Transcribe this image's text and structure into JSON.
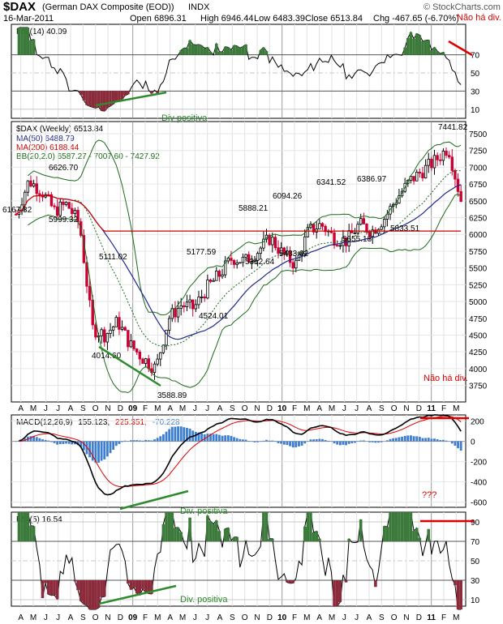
{
  "header": {
    "symbol": "$DAX",
    "name": "(German DAX Composite (EOD))",
    "exchange": "INDX",
    "date": "16-Mar-2011",
    "copyright": "© StockCharts.com",
    "open": "Open 6896.31",
    "high": "High 6946.44",
    "low": "Low 6483.39",
    "close": "Close 6513.84",
    "chg": "Chg -467.65 (-6.70%)"
  },
  "colors": {
    "price_up": "#000000",
    "price_down": "#cc0033",
    "ma50": "#1f2a8a",
    "ma200": "#cc0000",
    "bollinger": "#1a6b1a",
    "macd": "#000000",
    "signal": "#dd0000",
    "histogram": "#3d7ecf",
    "rsi_fill_high": "#3b7a3b",
    "rsi_fill_low": "#8a2a3a",
    "annotation_green": "#2e8b2e",
    "annotation_red": "#dd0000",
    "annotation_text_green": "#2a8a2a"
  },
  "rsi14_panel": {
    "legend": "RSI(14) 40.09",
    "ticks": [
      "70",
      "50",
      "30",
      "10"
    ],
    "annotation_note": "Não há div.",
    "annotation_div": "Div positiva"
  },
  "price_panel": {
    "legend_main": "$DAX (Weekly) 6513.84",
    "legend_ma50": "MA(50) 6488.79",
    "legend_ma200": "MA(200) 6188.44",
    "legend_bb": "BB(20,2.0) 6587.27 - 7007.60 - 7427.92",
    "ticks": [
      "7500",
      "7250",
      "7000",
      "6750",
      "6500",
      "6250",
      "6000",
      "5750",
      "5500",
      "5250",
      "5000",
      "4750",
      "4500",
      "4250",
      "4000",
      "3750"
    ],
    "labels": [
      "7441.82",
      "6626.70",
      "6167.82",
      "5999.32",
      "6341.52",
      "6386.97",
      "6094.26",
      "5888.21",
      "5655.18",
      "5833.51",
      "5177.59",
      "5111.02",
      "5312.64",
      "5433.02",
      "4524.01",
      "4014.60",
      "3588.89"
    ],
    "annotation_note": "Não há div."
  },
  "macd_panel": {
    "legend_prefix": "MACD(12,26,9)",
    "legend_macd": "155.123,",
    "legend_signal": "225.351,",
    "legend_hist": "-70.228",
    "ticks": [
      "200",
      "0",
      "-200",
      "-400",
      "-600"
    ],
    "annotation_q": "???",
    "annotation_div": "Div. positiva"
  },
  "rsi5_panel": {
    "legend": "RSI(5) 16.54",
    "ticks": [
      "90",
      "70",
      "50",
      "30",
      "10"
    ],
    "annotation_div": "Div. positiva"
  },
  "x_axis": {
    "months": [
      "A",
      "M",
      "J",
      "J",
      "A",
      "S",
      "O",
      "N",
      "D",
      "09",
      "F",
      "M",
      "A",
      "M",
      "J",
      "J",
      "A",
      "S",
      "O",
      "N",
      "D",
      "10",
      "F",
      "M",
      "A",
      "M",
      "J",
      "J",
      "A",
      "S",
      "O",
      "N",
      "D",
      "11",
      "F",
      "M"
    ]
  },
  "chart_data": {
    "type": "candlestick",
    "title": "$DAX (German DAX Composite (EOD)) INDX",
    "period": "weekly",
    "x_range": [
      "2008-04",
      "2011-03"
    ],
    "price_range": [
      3588.89,
      7441.82
    ],
    "ylim": [
      3500,
      7600
    ],
    "key_price_points": [
      {
        "label": "6167.82",
        "date": "2008-04",
        "value": 6167.82
      },
      {
        "label": "6626.70",
        "date": "2008-06",
        "value": 6626.7
      },
      {
        "label": "5999.32",
        "date": "2008-07",
        "value": 5999.32
      },
      {
        "label": "5111.02",
        "date": "2008-11",
        "value": 5111.02
      },
      {
        "label": "4014.60",
        "date": "2008-11",
        "value": 4014.6
      },
      {
        "label": "3588.89",
        "date": "2009-03",
        "value": 3588.89
      },
      {
        "label": "5177.59",
        "date": "2009-06",
        "value": 5177.59
      },
      {
        "label": "4524.01",
        "date": "2009-07",
        "value": 4524.01
      },
      {
        "label": "5888.21",
        "date": "2009-10",
        "value": 5888.21
      },
      {
        "label": "5312.64",
        "date": "2009-11",
        "value": 5312.64
      },
      {
        "label": "5433.02",
        "date": "2010-02",
        "value": 5433.02
      },
      {
        "label": "6094.26",
        "date": "2010-01",
        "value": 6094.26
      },
      {
        "label": "6341.52",
        "date": "2010-04",
        "value": 6341.52
      },
      {
        "label": "5655.18",
        "date": "2010-05",
        "value": 5655.18
      },
      {
        "label": "6386.97",
        "date": "2010-08",
        "value": 6386.97
      },
      {
        "label": "5833.51",
        "date": "2010-08",
        "value": 5833.51
      },
      {
        "label": "7441.82",
        "date": "2011-02",
        "value": 7441.82
      }
    ],
    "last_values": {
      "close": 6513.84,
      "ma50": 6488.79,
      "ma200": 6188.44,
      "bb_lower": 6587.27,
      "bb_mid": 7007.6,
      "bb_upper": 7427.92,
      "rsi14": 40.09,
      "macd": 155.123,
      "signal": 225.351,
      "histogram": -70.228,
      "rsi5": 16.54
    },
    "price_path": [
      [
        "2008-04",
        6300
      ],
      [
        "2008-05",
        6800
      ],
      [
        "2008-06",
        6650
      ],
      [
        "2008-07",
        6350
      ],
      [
        "2008-08",
        6450
      ],
      [
        "2008-09",
        6150
      ],
      [
        "2008-10",
        4600
      ],
      [
        "2008-11",
        4500
      ],
      [
        "2008-12",
        4700
      ],
      [
        "2009-01",
        4350
      ],
      [
        "2009-02",
        4150
      ],
      [
        "2009-03",
        4000
      ],
      [
        "2009-04",
        4750
      ],
      [
        "2009-05",
        4950
      ],
      [
        "2009-06",
        4900
      ],
      [
        "2009-07",
        5200
      ],
      [
        "2009-08",
        5400
      ],
      [
        "2009-09",
        5650
      ],
      [
        "2009-10",
        5600
      ],
      [
        "2009-11",
        5750
      ],
      [
        "2009-12",
        5950
      ],
      [
        "2010-01",
        5700
      ],
      [
        "2010-02",
        5550
      ],
      [
        "2010-03",
        6050
      ],
      [
        "2010-04",
        6150
      ],
      [
        "2010-05",
        5950
      ],
      [
        "2010-06",
        5900
      ],
      [
        "2010-07",
        6150
      ],
      [
        "2010-08",
        6050
      ],
      [
        "2010-09",
        6250
      ],
      [
        "2010-10",
        6550
      ],
      [
        "2010-11",
        6800
      ],
      [
        "2010-12",
        6950
      ],
      [
        "2011-01",
        7100
      ],
      [
        "2011-02",
        7300
      ],
      [
        "2011-03",
        6513.84
      ]
    ]
  }
}
